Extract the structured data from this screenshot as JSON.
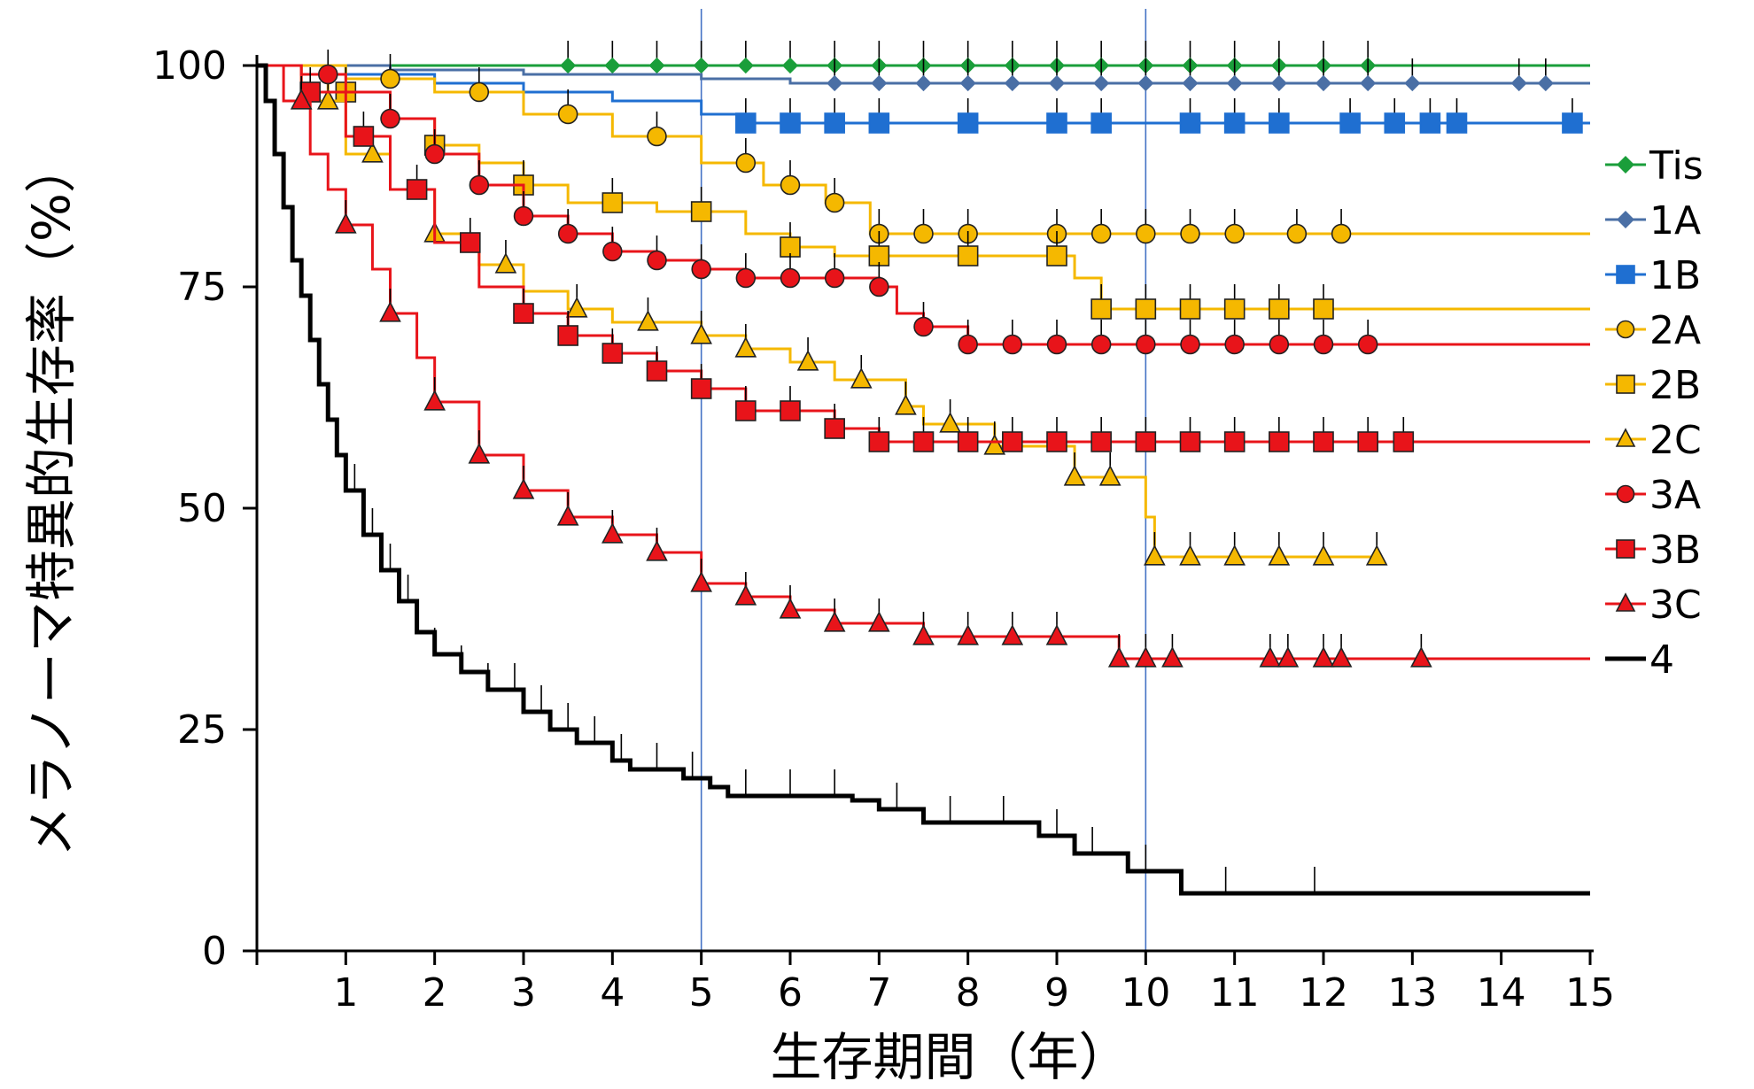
{
  "chart_data": {
    "type": "line",
    "subtype": "kaplan-meier",
    "title": "",
    "xlabel": "生存期間（年）",
    "ylabel": "メラノーマ特異的生存率（%）",
    "xlim": [
      0,
      15
    ],
    "ylim": [
      0,
      100
    ],
    "x_ticks": [
      1,
      2,
      3,
      4,
      5,
      6,
      7,
      8,
      9,
      10,
      11,
      12,
      13,
      14,
      15
    ],
    "y_ticks": [
      0,
      25,
      50,
      75,
      100
    ],
    "reference_lines_x": [
      5,
      10
    ],
    "grid": false,
    "legend_position": "right",
    "series": [
      {
        "name": "Tis",
        "color": "#1a9e3a",
        "marker": "diamond",
        "steps": [
          [
            0,
            100
          ],
          [
            15,
            100
          ]
        ],
        "markers_x": [
          3.5,
          4.0,
          4.5,
          5.0,
          5.5,
          6.0,
          6.5,
          7.0,
          7.5,
          8.0,
          8.5,
          9.0,
          9.5,
          10.0,
          10.5,
          11.0,
          11.5,
          12.0,
          12.5
        ],
        "end": 15
      },
      {
        "name": "1A",
        "color": "#4a6fa5",
        "marker": "diamond",
        "steps": [
          [
            0,
            100
          ],
          [
            1.5,
            99.5
          ],
          [
            3.0,
            99.0
          ],
          [
            5.0,
            98.5
          ],
          [
            6.0,
            98.0
          ],
          [
            15,
            98.0
          ]
        ],
        "markers_x": [
          6.5,
          7.0,
          7.5,
          8.0,
          8.5,
          9.0,
          9.5,
          10.0,
          10.5,
          11.0,
          11.5,
          12.0,
          12.5,
          13.0,
          14.2,
          14.5
        ],
        "end": 14.5
      },
      {
        "name": "1B",
        "color": "#1f6fd1",
        "marker": "square",
        "steps": [
          [
            0,
            100
          ],
          [
            1.0,
            99
          ],
          [
            2.0,
            98
          ],
          [
            3.0,
            97
          ],
          [
            4.0,
            96
          ],
          [
            5.0,
            94.5
          ],
          [
            5.5,
            93.5
          ],
          [
            15,
            93.5
          ]
        ],
        "markers_x": [
          5.5,
          6.0,
          6.5,
          7.0,
          8.0,
          9.0,
          9.5,
          10.5,
          11.0,
          11.5,
          12.3,
          12.8,
          13.2,
          13.5,
          14.8
        ],
        "end": 14.8
      },
      {
        "name": "2A",
        "color": "#f5b800",
        "marker": "circle",
        "steps": [
          [
            0,
            100
          ],
          [
            1.0,
            98.5
          ],
          [
            2.0,
            97
          ],
          [
            3.0,
            94.5
          ],
          [
            4.0,
            92
          ],
          [
            5.0,
            89
          ],
          [
            5.7,
            86.5
          ],
          [
            6.4,
            84.5
          ],
          [
            6.9,
            81
          ],
          [
            12.2,
            81
          ]
        ],
        "markers_x": [
          1.5,
          2.5,
          3.5,
          4.5,
          5.5,
          6.0,
          6.5,
          7.0,
          7.5,
          8.0,
          9.0,
          9.5,
          10.0,
          10.5,
          11.0,
          11.7,
          12.2
        ],
        "end": 15
      },
      {
        "name": "2B",
        "color": "#f5b800",
        "marker": "square",
        "steps": [
          [
            0,
            100
          ],
          [
            0.8,
            97
          ],
          [
            1.5,
            94
          ],
          [
            2.0,
            91
          ],
          [
            2.5,
            89
          ],
          [
            3.0,
            86.5
          ],
          [
            3.5,
            84.5
          ],
          [
            4.5,
            83.5
          ],
          [
            5.5,
            81
          ],
          [
            6.0,
            79.5
          ],
          [
            6.5,
            78.5
          ],
          [
            9.2,
            76
          ],
          [
            9.5,
            72.5
          ],
          [
            12.0,
            72.5
          ]
        ],
        "markers_x": [
          1.0,
          2.0,
          3.0,
          4.0,
          5.0,
          6.0,
          7.0,
          8.0,
          9.0,
          9.5,
          10.0,
          10.5,
          11.0,
          11.5,
          12.0
        ],
        "end": 15
      },
      {
        "name": "2C",
        "color": "#f5b800",
        "marker": "triangle",
        "steps": [
          [
            0,
            100
          ],
          [
            0.5,
            96
          ],
          [
            1.0,
            90
          ],
          [
            1.5,
            86
          ],
          [
            2.0,
            81
          ],
          [
            2.5,
            77.5
          ],
          [
            3.0,
            74.5
          ],
          [
            3.5,
            72.5
          ],
          [
            4.0,
            71
          ],
          [
            5.0,
            69.5
          ],
          [
            5.5,
            68
          ],
          [
            6.0,
            66.5
          ],
          [
            6.5,
            64.5
          ],
          [
            7.3,
            61.5
          ],
          [
            7.5,
            59.5
          ],
          [
            8.3,
            57
          ],
          [
            9.2,
            53.5
          ],
          [
            10.0,
            49
          ],
          [
            10.1,
            44.5
          ],
          [
            12.6,
            44.5
          ]
        ],
        "markers_x": [
          0.8,
          1.3,
          2.0,
          2.8,
          3.6,
          4.4,
          5.0,
          5.5,
          6.2,
          6.8,
          7.3,
          7.8,
          8.3,
          9.2,
          9.6,
          10.1,
          10.5,
          11.0,
          11.5,
          12.0,
          12.6
        ],
        "end": 12.6
      },
      {
        "name": "3A",
        "color": "#e8141a",
        "marker": "circle",
        "steps": [
          [
            0,
            100
          ],
          [
            0.5,
            99
          ],
          [
            1.0,
            97
          ],
          [
            1.5,
            94
          ],
          [
            2.0,
            90
          ],
          [
            2.5,
            86.5
          ],
          [
            3.0,
            83
          ],
          [
            3.5,
            81
          ],
          [
            4.0,
            79
          ],
          [
            4.5,
            78
          ],
          [
            5.0,
            77
          ],
          [
            5.5,
            76
          ],
          [
            7.0,
            75
          ],
          [
            7.2,
            72
          ],
          [
            7.5,
            70.5
          ],
          [
            8.0,
            68.5
          ],
          [
            12.5,
            68.5
          ]
        ],
        "markers_x": [
          0.8,
          1.5,
          2.0,
          2.5,
          3.0,
          3.5,
          4.0,
          4.5,
          5.0,
          5.5,
          6.0,
          6.5,
          7.0,
          7.5,
          8.0,
          8.5,
          9.0,
          9.5,
          10.0,
          10.5,
          11.0,
          11.5,
          12.0,
          12.5
        ],
        "end": 15
      },
      {
        "name": "3B",
        "color": "#e8141a",
        "marker": "square",
        "steps": [
          [
            0,
            100
          ],
          [
            0.5,
            97
          ],
          [
            1.0,
            92
          ],
          [
            1.5,
            86
          ],
          [
            2.0,
            80
          ],
          [
            2.5,
            75
          ],
          [
            3.0,
            72
          ],
          [
            3.5,
            69.5
          ],
          [
            4.0,
            67.5
          ],
          [
            4.5,
            65.5
          ],
          [
            5.0,
            63.5
          ],
          [
            5.5,
            61
          ],
          [
            6.5,
            59
          ],
          [
            7.0,
            57.5
          ],
          [
            12.9,
            57.5
          ]
        ],
        "markers_x": [
          0.6,
          1.2,
          1.8,
          2.4,
          3.0,
          3.5,
          4.0,
          4.5,
          5.0,
          5.5,
          6.0,
          6.5,
          7.0,
          7.5,
          8.0,
          8.5,
          9.0,
          9.5,
          10.0,
          10.5,
          11.0,
          11.5,
          12.0,
          12.5,
          12.9
        ],
        "end": 15
      },
      {
        "name": "3C",
        "color": "#e8141a",
        "marker": "triangle",
        "steps": [
          [
            0,
            100
          ],
          [
            0.3,
            96
          ],
          [
            0.6,
            90
          ],
          [
            0.8,
            86
          ],
          [
            1.0,
            82
          ],
          [
            1.3,
            77
          ],
          [
            1.5,
            72
          ],
          [
            1.8,
            67
          ],
          [
            2.0,
            62
          ],
          [
            2.5,
            56
          ],
          [
            3.0,
            52
          ],
          [
            3.5,
            49
          ],
          [
            4.0,
            47
          ],
          [
            4.5,
            45
          ],
          [
            5.0,
            41.5
          ],
          [
            5.5,
            40
          ],
          [
            6.0,
            38.5
          ],
          [
            6.5,
            37
          ],
          [
            7.5,
            35.5
          ],
          [
            9.7,
            33
          ],
          [
            13.1,
            33
          ]
        ],
        "markers_x": [
          0.5,
          1.0,
          1.5,
          2.0,
          2.5,
          3.0,
          3.5,
          4.0,
          4.5,
          5.0,
          5.5,
          6.0,
          6.5,
          7.0,
          7.5,
          8.0,
          8.5,
          9.0,
          9.7,
          10.0,
          10.3,
          11.4,
          11.6,
          12.0,
          12.2,
          13.1
        ],
        "end": 15
      },
      {
        "name": "4",
        "color": "#000000",
        "marker": "none",
        "steps": [
          [
            0,
            100
          ],
          [
            0.1,
            96
          ],
          [
            0.2,
            90
          ],
          [
            0.3,
            84
          ],
          [
            0.4,
            78
          ],
          [
            0.5,
            74
          ],
          [
            0.6,
            69
          ],
          [
            0.7,
            64
          ],
          [
            0.8,
            60
          ],
          [
            0.9,
            56
          ],
          [
            1.0,
            52
          ],
          [
            1.2,
            47
          ],
          [
            1.4,
            43
          ],
          [
            1.6,
            39.5
          ],
          [
            1.8,
            36
          ],
          [
            2.0,
            33.5
          ],
          [
            2.3,
            31.5
          ],
          [
            2.6,
            29.5
          ],
          [
            3.0,
            27
          ],
          [
            3.3,
            25
          ],
          [
            3.6,
            23.5
          ],
          [
            4.0,
            21.5
          ],
          [
            4.2,
            20.5
          ],
          [
            4.8,
            19.5
          ],
          [
            5.1,
            18.5
          ],
          [
            5.3,
            17.5
          ],
          [
            6.7,
            17
          ],
          [
            7.0,
            16
          ],
          [
            7.5,
            14.5
          ],
          [
            8.8,
            13
          ],
          [
            9.2,
            11
          ],
          [
            9.8,
            9
          ],
          [
            10.4,
            6.5
          ],
          [
            15,
            6.5
          ]
        ],
        "markers_x": [],
        "end": 15
      }
    ]
  }
}
